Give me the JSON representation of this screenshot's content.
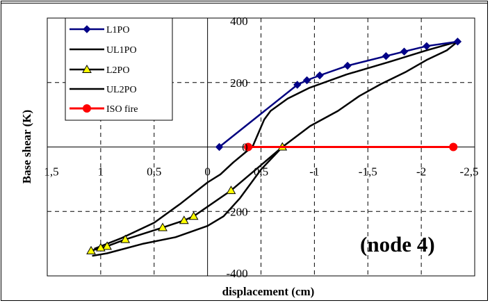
{
  "chart_data": {
    "type": "line",
    "title": "",
    "xlabel": "displacement (cm)",
    "ylabel": "Base shear (K)",
    "xlim": [
      1.5,
      -2.5
    ],
    "ylim": [
      -400,
      400
    ],
    "x_reversed": true,
    "grid": true,
    "grid_style": "dashed",
    "legend_position": "top-left",
    "x_ticks": [
      "1,5",
      "1",
      "0,5",
      "0",
      "0,5",
      "-1",
      "-1,5",
      "-2",
      "-2,5"
    ],
    "x_tick_values": [
      1.5,
      1,
      0.5,
      0,
      -0.5,
      -1,
      -1.5,
      -2,
      -2.5
    ],
    "y_ticks": [
      "400",
      "200",
      "0",
      "-200",
      "-400"
    ],
    "y_tick_values": [
      400,
      200,
      0,
      -200,
      -400
    ],
    "annotation": "(node 4)",
    "series": [
      {
        "name": "L1PO",
        "color": "#000080",
        "marker": "diamond",
        "marker_color": "#00008B",
        "points": [
          [
            -0.11,
            0
          ],
          [
            -0.84,
            193
          ],
          [
            -0.93,
            207
          ],
          [
            -1.05,
            222
          ],
          [
            -1.31,
            252
          ],
          [
            -1.67,
            282
          ],
          [
            -1.84,
            296
          ],
          [
            -2.05,
            313
          ],
          [
            -2.34,
            327
          ]
        ]
      },
      {
        "name": "UL1PO",
        "color": "#000000",
        "marker": "none",
        "points": [
          [
            -2.34,
            327
          ],
          [
            -2.24,
            300
          ],
          [
            -2.05,
            270
          ],
          [
            -1.85,
            232
          ],
          [
            -1.62,
            195
          ],
          [
            -1.42,
            158
          ],
          [
            -1.22,
            112
          ],
          [
            -0.96,
            65
          ],
          [
            -0.82,
            30
          ],
          [
            -0.7,
            0
          ],
          [
            -0.5,
            -70
          ],
          [
            -0.3,
            -160
          ],
          [
            -0.15,
            -215
          ],
          [
            0.0,
            -245
          ],
          [
            0.3,
            -280
          ],
          [
            0.6,
            -300
          ],
          [
            0.94,
            -330
          ],
          [
            1.08,
            -338
          ]
        ]
      },
      {
        "name": "L2PO",
        "color": "#000000",
        "marker": "triangle",
        "marker_color": "#FFFF00",
        "points": [
          [
            -0.7,
            0
          ],
          [
            -0.22,
            -135
          ],
          [
            0.13,
            -215
          ],
          [
            0.22,
            -228
          ],
          [
            0.42,
            -250
          ],
          [
            0.77,
            -287
          ],
          [
            0.94,
            -308
          ],
          [
            1.0,
            -313
          ],
          [
            1.09,
            -322
          ]
        ]
      },
      {
        "name": "UL2PO",
        "color": "#000000",
        "marker": "none",
        "points": [
          [
            1.06,
            -316
          ],
          [
            0.8,
            -282
          ],
          [
            0.5,
            -235
          ],
          [
            0.25,
            -175
          ],
          [
            0.0,
            -110
          ],
          [
            -0.12,
            -85
          ],
          [
            -0.24,
            -48
          ],
          [
            -0.36,
            -15
          ],
          [
            -0.42,
            0
          ],
          [
            -0.53,
            85
          ],
          [
            -0.59,
            112
          ],
          [
            -0.75,
            150
          ],
          [
            -0.95,
            183
          ],
          [
            -1.3,
            225
          ],
          [
            -1.7,
            264
          ],
          [
            -2.05,
            300
          ],
          [
            -2.34,
            327
          ]
        ]
      },
      {
        "name": "ISO fire",
        "color": "#FF0000",
        "marker": "circle",
        "marker_color": "#FF0000",
        "points": [
          [
            -0.38,
            0
          ],
          [
            -2.3,
            0
          ]
        ]
      }
    ]
  }
}
